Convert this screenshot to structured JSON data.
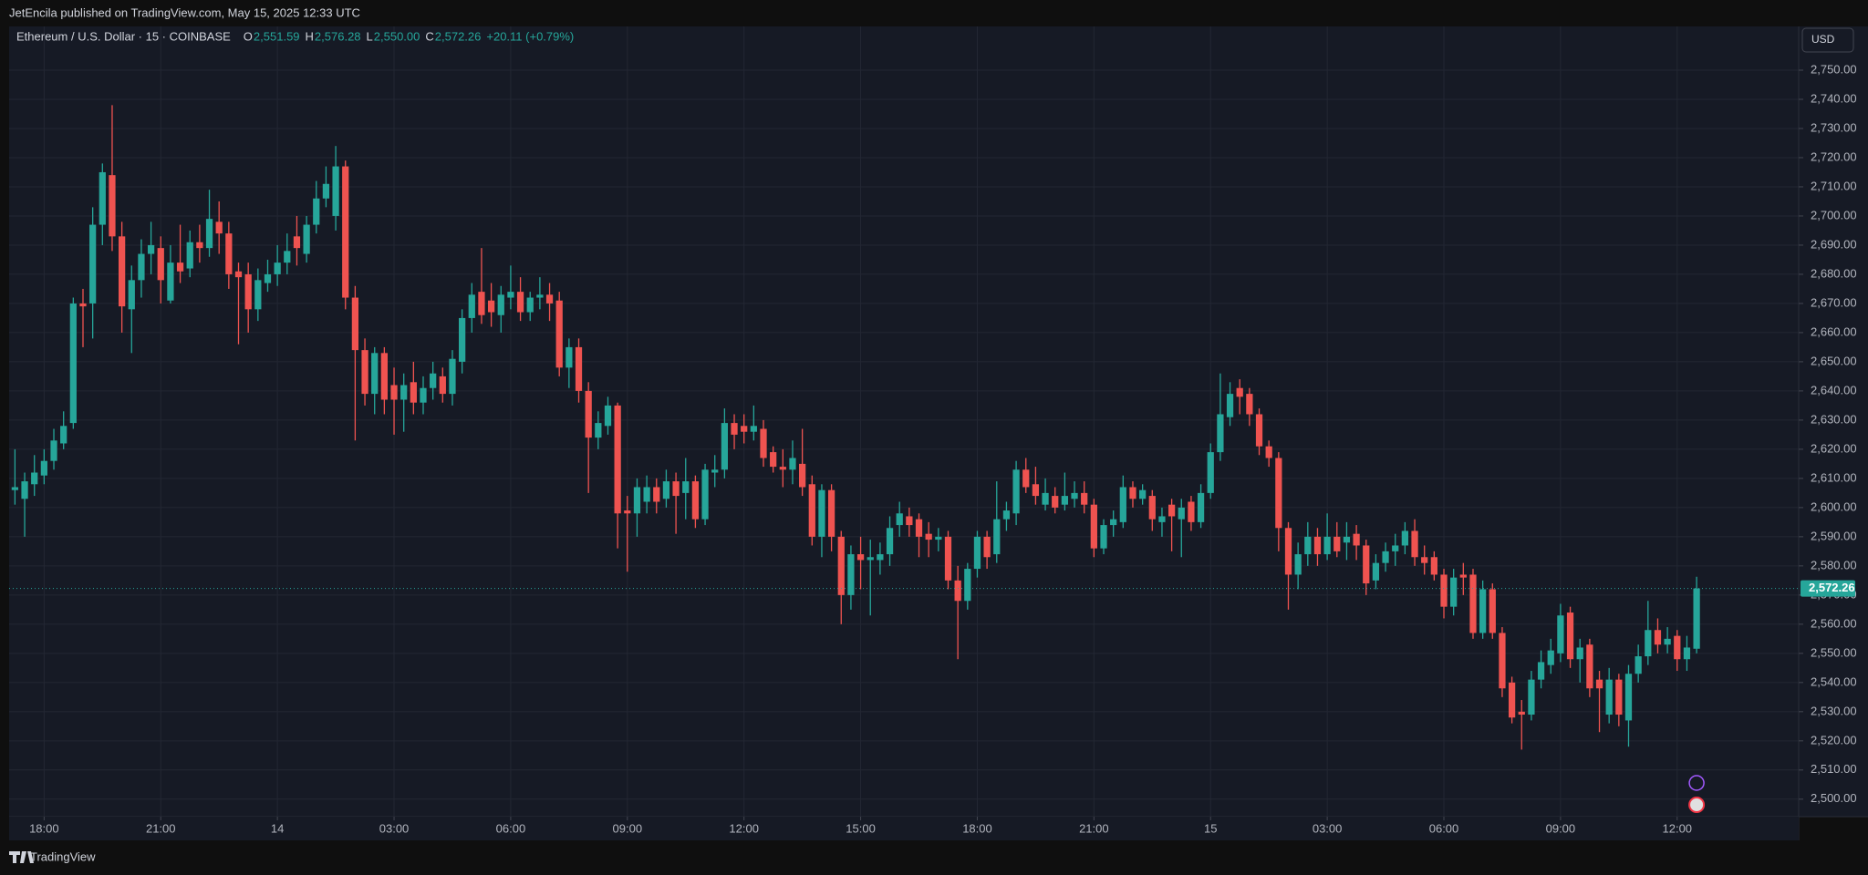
{
  "header": "JetEncila published on TradingView.com, May 15, 2025 12:33 UTC",
  "currency": "USD",
  "brand": "TradingView",
  "chart_data": {
    "type": "candlestick",
    "title": "Ethereum / U.S. Dollar · 15 · COINBASE",
    "legend": {
      "labels": [
        "O",
        "H",
        "L",
        "C"
      ],
      "values": [
        "2,551.59",
        "2,576.28",
        "2,550.00",
        "2,572.26"
      ],
      "change": "+20.11 (+0.79%)"
    },
    "up_color": "#26a69a",
    "down_color": "#ef5350",
    "grid": true,
    "last_price": {
      "value": 2572.26,
      "label": "2,572.26"
    },
    "xlim": [
      -0.6,
      183.5
    ],
    "xticks": [
      {
        "value": 3,
        "label": "18:00"
      },
      {
        "value": 15,
        "label": "21:00"
      },
      {
        "value": 27,
        "label": "14"
      },
      {
        "value": 39,
        "label": "03:00"
      },
      {
        "value": 51,
        "label": "06:00"
      },
      {
        "value": 63,
        "label": "09:00"
      },
      {
        "value": 75,
        "label": "12:00"
      },
      {
        "value": 87,
        "label": "15:00"
      },
      {
        "value": 99,
        "label": "18:00"
      },
      {
        "value": 111,
        "label": "21:00"
      },
      {
        "value": 123,
        "label": "15"
      },
      {
        "value": 135,
        "label": "03:00"
      },
      {
        "value": 147,
        "label": "06:00"
      },
      {
        "value": 159,
        "label": "09:00"
      },
      {
        "value": 171,
        "label": "12:00"
      }
    ],
    "ylim": [
      2494,
      2765
    ],
    "yticks": [
      {
        "value": 2500,
        "label": "2,500.00"
      },
      {
        "value": 2510,
        "label": "2,510.00"
      },
      {
        "value": 2520,
        "label": "2,520.00"
      },
      {
        "value": 2530,
        "label": "2,530.00"
      },
      {
        "value": 2540,
        "label": "2,540.00"
      },
      {
        "value": 2550,
        "label": "2,550.00"
      },
      {
        "value": 2560,
        "label": "2,560.00"
      },
      {
        "value": 2570,
        "label": "2,570.00"
      },
      {
        "value": 2580,
        "label": "2,580.00"
      },
      {
        "value": 2590,
        "label": "2,590.00"
      },
      {
        "value": 2600,
        "label": "2,600.00"
      },
      {
        "value": 2610,
        "label": "2,610.00"
      },
      {
        "value": 2620,
        "label": "2,620.00"
      },
      {
        "value": 2630,
        "label": "2,630.00"
      },
      {
        "value": 2640,
        "label": "2,640.00"
      },
      {
        "value": 2650,
        "label": "2,650.00"
      },
      {
        "value": 2660,
        "label": "2,660.00"
      },
      {
        "value": 2670,
        "label": "2,670.00"
      },
      {
        "value": 2680,
        "label": "2,680.00"
      },
      {
        "value": 2690,
        "label": "2,690.00"
      },
      {
        "value": 2700,
        "label": "2,700.00"
      },
      {
        "value": 2710,
        "label": "2,710.00"
      },
      {
        "value": 2720,
        "label": "2,720.00"
      },
      {
        "value": 2730,
        "label": "2,730.00"
      },
      {
        "value": 2740,
        "label": "2,740.00"
      },
      {
        "value": 2750,
        "label": "2,750.00"
      }
    ],
    "open": [
      2606,
      2603,
      2608,
      2611,
      2616,
      2622,
      2629,
      2670,
      2670,
      2697,
      2714,
      2693,
      2668,
      2678,
      2687,
      2689,
      2671,
      2684,
      2682,
      2691,
      2689,
      2698,
      2694,
      2681,
      2680,
      2668,
      2677,
      2680,
      2684,
      2693,
      2687,
      2697,
      2706,
      2700,
      2717,
      2672,
      2654,
      2639,
      2653,
      2642,
      2637,
      2643,
      2636,
      2641,
      2645,
      2639,
      2650,
      2665,
      2674,
      2671,
      2666,
      2672,
      2674,
      2667,
      2672,
      2673,
      2671,
      2648,
      2655,
      2640,
      2624,
      2628,
      2635,
      2599,
      2598,
      2602,
      2607,
      2603,
      2609,
      2605,
      2609,
      2596,
      2612,
      2613,
      2629,
      2628,
      2626,
      2627,
      2619,
      2614,
      2613,
      2615,
      2608,
      2590,
      2606,
      2590,
      2570,
      2584,
      2582,
      2582,
      2584,
      2594,
      2597,
      2596,
      2591,
      2589,
      2590,
      2575,
      2568,
      2579,
      2590,
      2584,
      2596,
      2598,
      2613,
      2608,
      2601,
      2604,
      2601,
      2603,
      2605,
      2601,
      2586,
      2594,
      2595,
      2607,
      2603,
      2604,
      2595,
      2601,
      2596,
      2602,
      2595,
      2605,
      2619,
      2631,
      2641,
      2639,
      2632,
      2621,
      2617,
      2593,
      2577,
      2584,
      2590,
      2584,
      2590,
      2588,
      2591,
      2587,
      2575,
      2581,
      2585,
      2587,
      2592,
      2583,
      2583,
      2577,
      2566,
      2577,
      2577,
      2557,
      2572,
      2557,
      2540,
      2530,
      2529,
      2541,
      2546,
      2550,
      2564,
      2548,
      2553,
      2541,
      2529,
      2541,
      2527,
      2543,
      2549,
      2558,
      2553,
      2556,
      2548,
      2551.59
    ],
    "high": [
      2620,
      2612,
      2618,
      2620,
      2627,
      2633,
      2672,
      2675,
      2703,
      2718,
      2738,
      2698,
      2683,
      2692,
      2698,
      2693,
      2690,
      2697,
      2695,
      2697,
      2709,
      2705,
      2698,
      2684,
      2684,
      2682,
      2685,
      2690,
      2694,
      2700,
      2700,
      2712,
      2717,
      2724,
      2719,
      2676,
      2658,
      2655,
      2655,
      2648,
      2646,
      2650,
      2645,
      2650,
      2648,
      2654,
      2668,
      2677,
      2689,
      2677,
      2676,
      2683,
      2679,
      2674,
      2679,
      2677,
      2674,
      2658,
      2658,
      2643,
      2633,
      2638,
      2636,
      2604,
      2610,
      2611,
      2610,
      2613,
      2612,
      2617,
      2611,
      2615,
      2618,
      2634,
      2632,
      2632,
      2635,
      2630,
      2621,
      2620,
      2623,
      2627,
      2611,
      2608,
      2608,
      2592,
      2587,
      2590,
      2589,
      2588,
      2597,
      2602,
      2600,
      2598,
      2595,
      2593,
      2592,
      2580,
      2581,
      2592,
      2592,
      2609,
      2602,
      2616,
      2617,
      2614,
      2610,
      2607,
      2612,
      2609,
      2609,
      2603,
      2596,
      2599,
      2611,
      2609,
      2608,
      2606,
      2600,
      2603,
      2603,
      2604,
      2608,
      2622,
      2646,
      2643,
      2644,
      2641,
      2634,
      2623,
      2619,
      2595,
      2588,
      2595,
      2593,
      2598,
      2595,
      2595,
      2594,
      2589,
      2584,
      2588,
      2591,
      2595,
      2596,
      2587,
      2585,
      2579,
      2579,
      2581,
      2579,
      2575,
      2574,
      2559,
      2542,
      2534,
      2544,
      2551,
      2555,
      2567,
      2566,
      2555,
      2555,
      2544,
      2545,
      2543,
      2546,
      2553,
      2568,
      2562,
      2559,
      2558,
      2556,
      2576.28
    ],
    "low": [
      2601,
      2590,
      2604,
      2608,
      2613,
      2620,
      2627,
      2655,
      2658,
      2690,
      2688,
      2660,
      2653,
      2672,
      2680,
      2670,
      2670,
      2677,
      2679,
      2684,
      2686,
      2687,
      2675,
      2656,
      2660,
      2664,
      2674,
      2676,
      2680,
      2683,
      2684,
      2694,
      2703,
      2695,
      2668,
      2623,
      2635,
      2632,
      2632,
      2625,
      2626,
      2632,
      2632,
      2637,
      2636,
      2635,
      2646,
      2660,
      2663,
      2662,
      2660,
      2668,
      2664,
      2664,
      2668,
      2664,
      2645,
      2641,
      2636,
      2605,
      2620,
      2625,
      2586,
      2578,
      2590,
      2598,
      2598,
      2600,
      2591,
      2596,
      2593,
      2594,
      2607,
      2610,
      2620,
      2622,
      2623,
      2614,
      2612,
      2607,
      2608,
      2604,
      2587,
      2583,
      2585,
      2560,
      2565,
      2572,
      2563,
      2577,
      2580,
      2590,
      2590,
      2583,
      2583,
      2585,
      2572,
      2548,
      2565,
      2576,
      2579,
      2581,
      2592,
      2594,
      2605,
      2601,
      2599,
      2598,
      2599,
      2600,
      2598,
      2583,
      2584,
      2590,
      2593,
      2600,
      2601,
      2592,
      2590,
      2585,
      2583,
      2592,
      2593,
      2603,
      2616,
      2628,
      2632,
      2628,
      2618,
      2614,
      2585,
      2565,
      2572,
      2580,
      2580,
      2582,
      2583,
      2582,
      2582,
      2570,
      2572,
      2578,
      2580,
      2584,
      2580,
      2577,
      2575,
      2562,
      2563,
      2570,
      2555,
      2555,
      2555,
      2535,
      2526,
      2517,
      2527,
      2538,
      2543,
      2547,
      2545,
      2540,
      2535,
      2523,
      2526,
      2525,
      2518,
      2540,
      2546,
      2550,
      2550,
      2544,
      2544,
      2550
    ],
    "close": [
      2607,
      2609,
      2612,
      2616,
      2623,
      2628,
      2670,
      2669,
      2697,
      2715,
      2693,
      2669,
      2678,
      2687,
      2690,
      2678,
      2684,
      2681,
      2691,
      2689,
      2699,
      2694,
      2680,
      2679,
      2668,
      2678,
      2680,
      2684,
      2688,
      2689,
      2697,
      2706,
      2711,
      2717,
      2672,
      2654,
      2639,
      2653,
      2637,
      2637,
      2642,
      2636,
      2641,
      2646,
      2639,
      2651,
      2665,
      2673,
      2666,
      2667,
      2673,
      2674,
      2667,
      2672,
      2673,
      2670,
      2648,
      2655,
      2640,
      2624,
      2629,
      2635,
      2598,
      2598,
      2607,
      2607,
      2602,
      2609,
      2604,
      2609,
      2596,
      2613,
      2613,
      2629,
      2625,
      2626,
      2628,
      2617,
      2614,
      2613,
      2617,
      2607,
      2590,
      2606,
      2590,
      2570,
      2584,
      2582,
      2583,
      2584,
      2593,
      2598,
      2594,
      2590,
      2589,
      2590,
      2575,
      2568,
      2579,
      2590,
      2583,
      2596,
      2599,
      2613,
      2607,
      2604,
      2605,
      2600,
      2604,
      2605,
      2601,
      2586,
      2594,
      2596,
      2607,
      2603,
      2606,
      2596,
      2597,
      2597,
      2600,
      2595,
      2605,
      2619,
      2632,
      2639,
      2638,
      2632,
      2621,
      2617,
      2593,
      2577,
      2584,
      2590,
      2584,
      2590,
      2585,
      2590,
      2587,
      2574,
      2581,
      2585,
      2587,
      2592,
      2583,
      2581,
      2577,
      2566,
      2576,
      2576,
      2557,
      2572,
      2557,
      2538,
      2528,
      2529,
      2541,
      2547,
      2551,
      2563,
      2548,
      2552,
      2538,
      2538,
      2541,
      2529,
      2543,
      2549,
      2558,
      2553,
      2555,
      2548,
      2552,
      2572.26
    ]
  }
}
